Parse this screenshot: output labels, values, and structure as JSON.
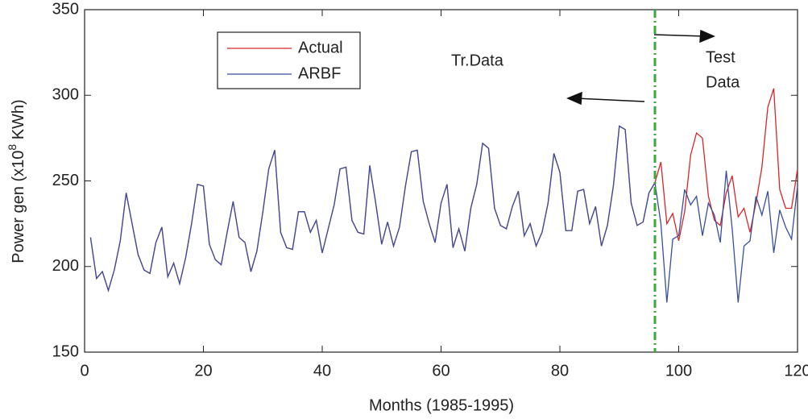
{
  "chart_data": {
    "type": "line",
    "xlabel": "Months (1985-1995)",
    "ylabel_parts": [
      "Power gen (x10",
      "8",
      " KWh)"
    ],
    "annotations": [
      "Tr.Data",
      "Test",
      "Data"
    ],
    "divider_x": 96,
    "divider_color": "#3aaa35",
    "legend": "upper left",
    "x": [
      1,
      2,
      3,
      4,
      5,
      6,
      7,
      8,
      9,
      10,
      11,
      12,
      13,
      14,
      15,
      16,
      17,
      18,
      19,
      20,
      21,
      22,
      23,
      24,
      25,
      26,
      27,
      28,
      29,
      30,
      31,
      32,
      33,
      34,
      35,
      36,
      37,
      38,
      39,
      40,
      41,
      42,
      43,
      44,
      45,
      46,
      47,
      48,
      49,
      50,
      51,
      52,
      53,
      54,
      55,
      56,
      57,
      58,
      59,
      60,
      61,
      62,
      63,
      64,
      65,
      66,
      67,
      68,
      69,
      70,
      71,
      72,
      73,
      74,
      75,
      76,
      77,
      78,
      79,
      80,
      81,
      82,
      83,
      84,
      85,
      86,
      87,
      88,
      89,
      90,
      91,
      92,
      93,
      94,
      95,
      96,
      97,
      98,
      99,
      100,
      101,
      102,
      103,
      104,
      105,
      106,
      107,
      108,
      109,
      110,
      111,
      112,
      113,
      114,
      115,
      116,
      117,
      118,
      119,
      120
    ],
    "series": [
      {
        "name": "Actual",
        "color": "#d7262b",
        "values": [
          217,
          193,
          197,
          186,
          198,
          215,
          243,
          225,
          207,
          198,
          196,
          214,
          223,
          194,
          202,
          190,
          205,
          225,
          248,
          247,
          213,
          204,
          201,
          220,
          238,
          217,
          214,
          197,
          209,
          232,
          257,
          268,
          220,
          211,
          210,
          232,
          232,
          220,
          227,
          208,
          222,
          236,
          257,
          258,
          227,
          220,
          219,
          259,
          237,
          213,
          226,
          212,
          223,
          247,
          267,
          268,
          238,
          225,
          214,
          237,
          248,
          211,
          222,
          209,
          234,
          248,
          272,
          269,
          234,
          224,
          222,
          235,
          244,
          218,
          225,
          212,
          220,
          237,
          266,
          255,
          221,
          221,
          244,
          245,
          225,
          235,
          212,
          224,
          247,
          282,
          280,
          237,
          224,
          226,
          243,
          249,
          261,
          225,
          231,
          215,
          232,
          265,
          278,
          275,
          241,
          227,
          224,
          243,
          253,
          229,
          234,
          220,
          237,
          258,
          293,
          304,
          245,
          234,
          234,
          257
        ]
      },
      {
        "name": "ARBF",
        "color": "#3a4f9a",
        "values": [
          217,
          193,
          197,
          186,
          198,
          215,
          243,
          225,
          207,
          198,
          196,
          214,
          223,
          194,
          202,
          190,
          205,
          225,
          248,
          247,
          213,
          204,
          201,
          220,
          238,
          217,
          214,
          197,
          209,
          232,
          257,
          268,
          220,
          211,
          210,
          232,
          232,
          220,
          227,
          208,
          222,
          236,
          257,
          258,
          227,
          220,
          219,
          259,
          237,
          213,
          226,
          212,
          223,
          247,
          267,
          268,
          238,
          225,
          214,
          237,
          248,
          211,
          222,
          209,
          234,
          248,
          272,
          269,
          234,
          224,
          222,
          235,
          244,
          218,
          225,
          212,
          220,
          237,
          266,
          255,
          221,
          221,
          244,
          245,
          225,
          235,
          212,
          224,
          247,
          282,
          280,
          237,
          224,
          226,
          243,
          249,
          225,
          179,
          216,
          218,
          245,
          236,
          241,
          218,
          237,
          230,
          214,
          256,
          222,
          179,
          212,
          215,
          241,
          230,
          244,
          208,
          233,
          223,
          216,
          247
        ]
      }
    ],
    "xlim": [
      0,
      120
    ],
    "xticks": [
      0,
      20,
      40,
      60,
      80,
      100,
      120
    ],
    "ylim": [
      150,
      350
    ],
    "yticks": [
      150,
      200,
      250,
      300,
      350
    ]
  }
}
